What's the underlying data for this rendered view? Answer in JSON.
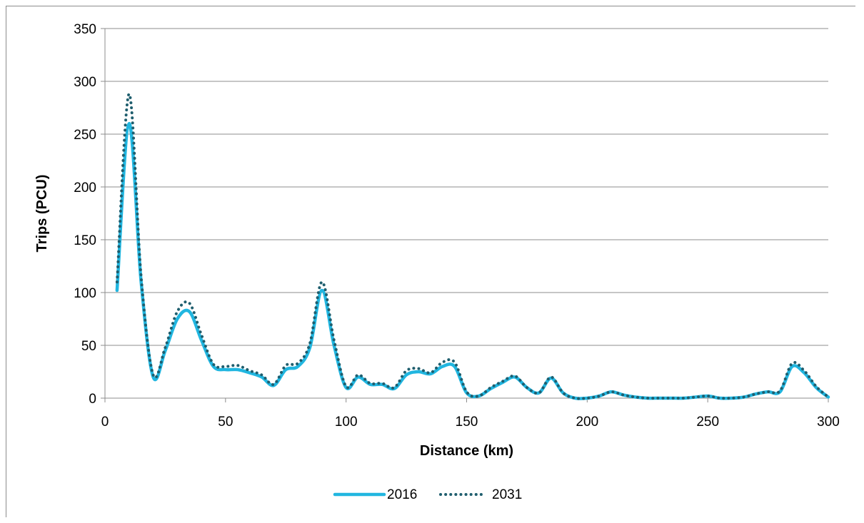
{
  "chart_data": {
    "type": "line",
    "title": "",
    "xlabel": "Distance (km)",
    "ylabel": "Trips (PCU)",
    "xlim": [
      0,
      300
    ],
    "ylim": [
      0,
      350
    ],
    "xticks": [
      0,
      50,
      100,
      150,
      200,
      250,
      300
    ],
    "yticks": [
      0,
      50,
      100,
      150,
      200,
      250,
      300,
      350
    ],
    "grid": "horizontal",
    "legend_position": "bottom",
    "series": [
      {
        "name": "2016",
        "color": "#21b6e0",
        "style": "solid",
        "x": [
          5,
          10,
          15,
          20,
          25,
          30,
          35,
          40,
          45,
          50,
          55,
          60,
          65,
          70,
          75,
          80,
          85,
          90,
          95,
          100,
          105,
          110,
          115,
          120,
          125,
          130,
          135,
          140,
          145,
          150,
          155,
          160,
          165,
          170,
          175,
          180,
          185,
          190,
          195,
          200,
          205,
          210,
          215,
          220,
          225,
          230,
          235,
          240,
          245,
          250,
          255,
          260,
          265,
          270,
          275,
          280,
          285,
          290,
          295,
          300
        ],
        "y": [
          102,
          260,
          110,
          20,
          45,
          75,
          82,
          55,
          30,
          27,
          27,
          24,
          20,
          12,
          27,
          30,
          48,
          102,
          50,
          10,
          20,
          13,
          13,
          9,
          22,
          25,
          23,
          30,
          30,
          5,
          2,
          9,
          15,
          20,
          10,
          5,
          19,
          5,
          0,
          0,
          2,
          6,
          3,
          1,
          0,
          0,
          0,
          0,
          1,
          2,
          0,
          0,
          1,
          4,
          6,
          6,
          30,
          24,
          10,
          1
        ]
      },
      {
        "name": "2031",
        "color": "#1f5e6e",
        "style": "dotted",
        "x": [
          5,
          10,
          15,
          20,
          25,
          30,
          35,
          40,
          45,
          50,
          55,
          60,
          65,
          70,
          75,
          80,
          85,
          90,
          95,
          100,
          105,
          110,
          115,
          120,
          125,
          130,
          135,
          140,
          145,
          150,
          155,
          160,
          165,
          170,
          175,
          180,
          185,
          190,
          195,
          200,
          205,
          210,
          215,
          220,
          225,
          230,
          235,
          240,
          245,
          250,
          255,
          260,
          265,
          270,
          275,
          280,
          285,
          290,
          295,
          300
        ],
        "y": [
          110,
          288,
          115,
          22,
          48,
          82,
          90,
          60,
          32,
          30,
          31,
          26,
          22,
          13,
          31,
          33,
          52,
          110,
          55,
          11,
          22,
          14,
          14,
          10,
          26,
          28,
          24,
          34,
          34,
          6,
          2,
          10,
          16,
          21,
          10,
          5,
          20,
          5,
          0,
          0,
          2,
          6,
          3,
          1,
          0,
          0,
          0,
          0,
          1,
          2,
          0,
          0,
          1,
          4,
          6,
          7,
          33,
          26,
          11,
          1
        ]
      }
    ]
  }
}
